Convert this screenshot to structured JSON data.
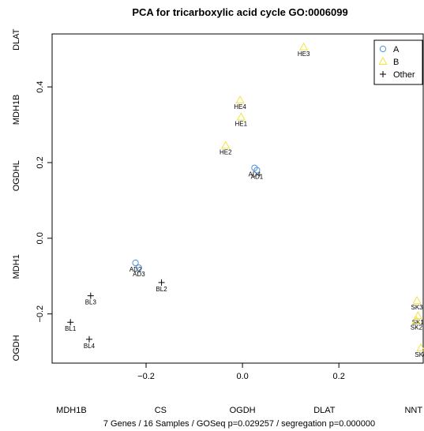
{
  "chart_data": {
    "type": "scatter",
    "title": "PCA for tricarboxylic acid cycle GO:0006099",
    "footer": "7 Genes / 16 Samples / GOSeq p=0.029257 / segregation p=0.000000",
    "xlim": [
      -0.395,
      0.375
    ],
    "ylim": [
      -0.33,
      0.54
    ],
    "xticks": [
      -0.2,
      0.0,
      0.2
    ],
    "xtick_labels": [
      "−0.2",
      "0.0",
      "0.2"
    ],
    "yticks": [
      -0.2,
      0.0,
      0.2,
      0.4
    ],
    "ytick_labels": [
      "−0.2",
      "0.0",
      "0.2",
      "0.4"
    ],
    "x_gene_labels": [
      {
        "label": "MDH1B",
        "x": -0.355
      },
      {
        "label": "CS",
        "x": -0.17
      },
      {
        "label": "OGDH",
        "x": 0.0
      },
      {
        "label": "DLAT",
        "x": 0.17
      },
      {
        "label": "NNT",
        "x": 0.355
      }
    ],
    "y_gene_labels": [
      {
        "label": "DLAT",
        "y": 0.525
      },
      {
        "label": "MDH1B",
        "y": 0.34
      },
      {
        "label": "OGDHL",
        "y": 0.165
      },
      {
        "label": "MDH1",
        "y": -0.075
      },
      {
        "label": "OGDH",
        "y": -0.29
      }
    ],
    "legend": {
      "position": "top-right",
      "entries": [
        {
          "name": "A",
          "marker": "circle",
          "color": "#4a90d9"
        },
        {
          "name": "B",
          "marker": "triangle",
          "color": "#f0e442"
        },
        {
          "name": "Other",
          "marker": "plus",
          "color": "#000000"
        }
      ]
    },
    "series": [
      {
        "name": "A",
        "marker": "circle",
        "color": "#4a90d9",
        "points": [
          {
            "label": "AD2",
            "x": -0.222,
            "y": -0.065
          },
          {
            "label": "AD3",
            "x": -0.215,
            "y": -0.078
          },
          {
            "label": "AD4",
            "x": 0.025,
            "y": 0.186
          },
          {
            "label": "AD1",
            "x": 0.03,
            "y": 0.18
          }
        ]
      },
      {
        "name": "B",
        "marker": "triangle",
        "color": "#f0e442",
        "points": [
          {
            "label": "HE3",
            "x": 0.127,
            "y": 0.505
          },
          {
            "label": "HE4",
            "x": -0.005,
            "y": 0.365
          },
          {
            "label": "HE1",
            "x": -0.003,
            "y": 0.32
          },
          {
            "label": "HE2",
            "x": -0.035,
            "y": 0.245
          },
          {
            "label": "SK3",
            "x": 0.362,
            "y": -0.165
          },
          {
            "label": "SK1",
            "x": 0.364,
            "y": -0.205
          },
          {
            "label": "SK2",
            "x": 0.361,
            "y": -0.218
          },
          {
            "label": "SK4",
            "x": 0.37,
            "y": -0.29
          }
        ]
      },
      {
        "name": "Other",
        "marker": "plus",
        "color": "#000000",
        "points": [
          {
            "label": "BL2",
            "x": -0.168,
            "y": -0.117
          },
          {
            "label": "BL3",
            "x": -0.315,
            "y": -0.152
          },
          {
            "label": "BL1",
            "x": -0.357,
            "y": -0.222
          },
          {
            "label": "BL4",
            "x": -0.318,
            "y": -0.267
          }
        ]
      }
    ]
  }
}
